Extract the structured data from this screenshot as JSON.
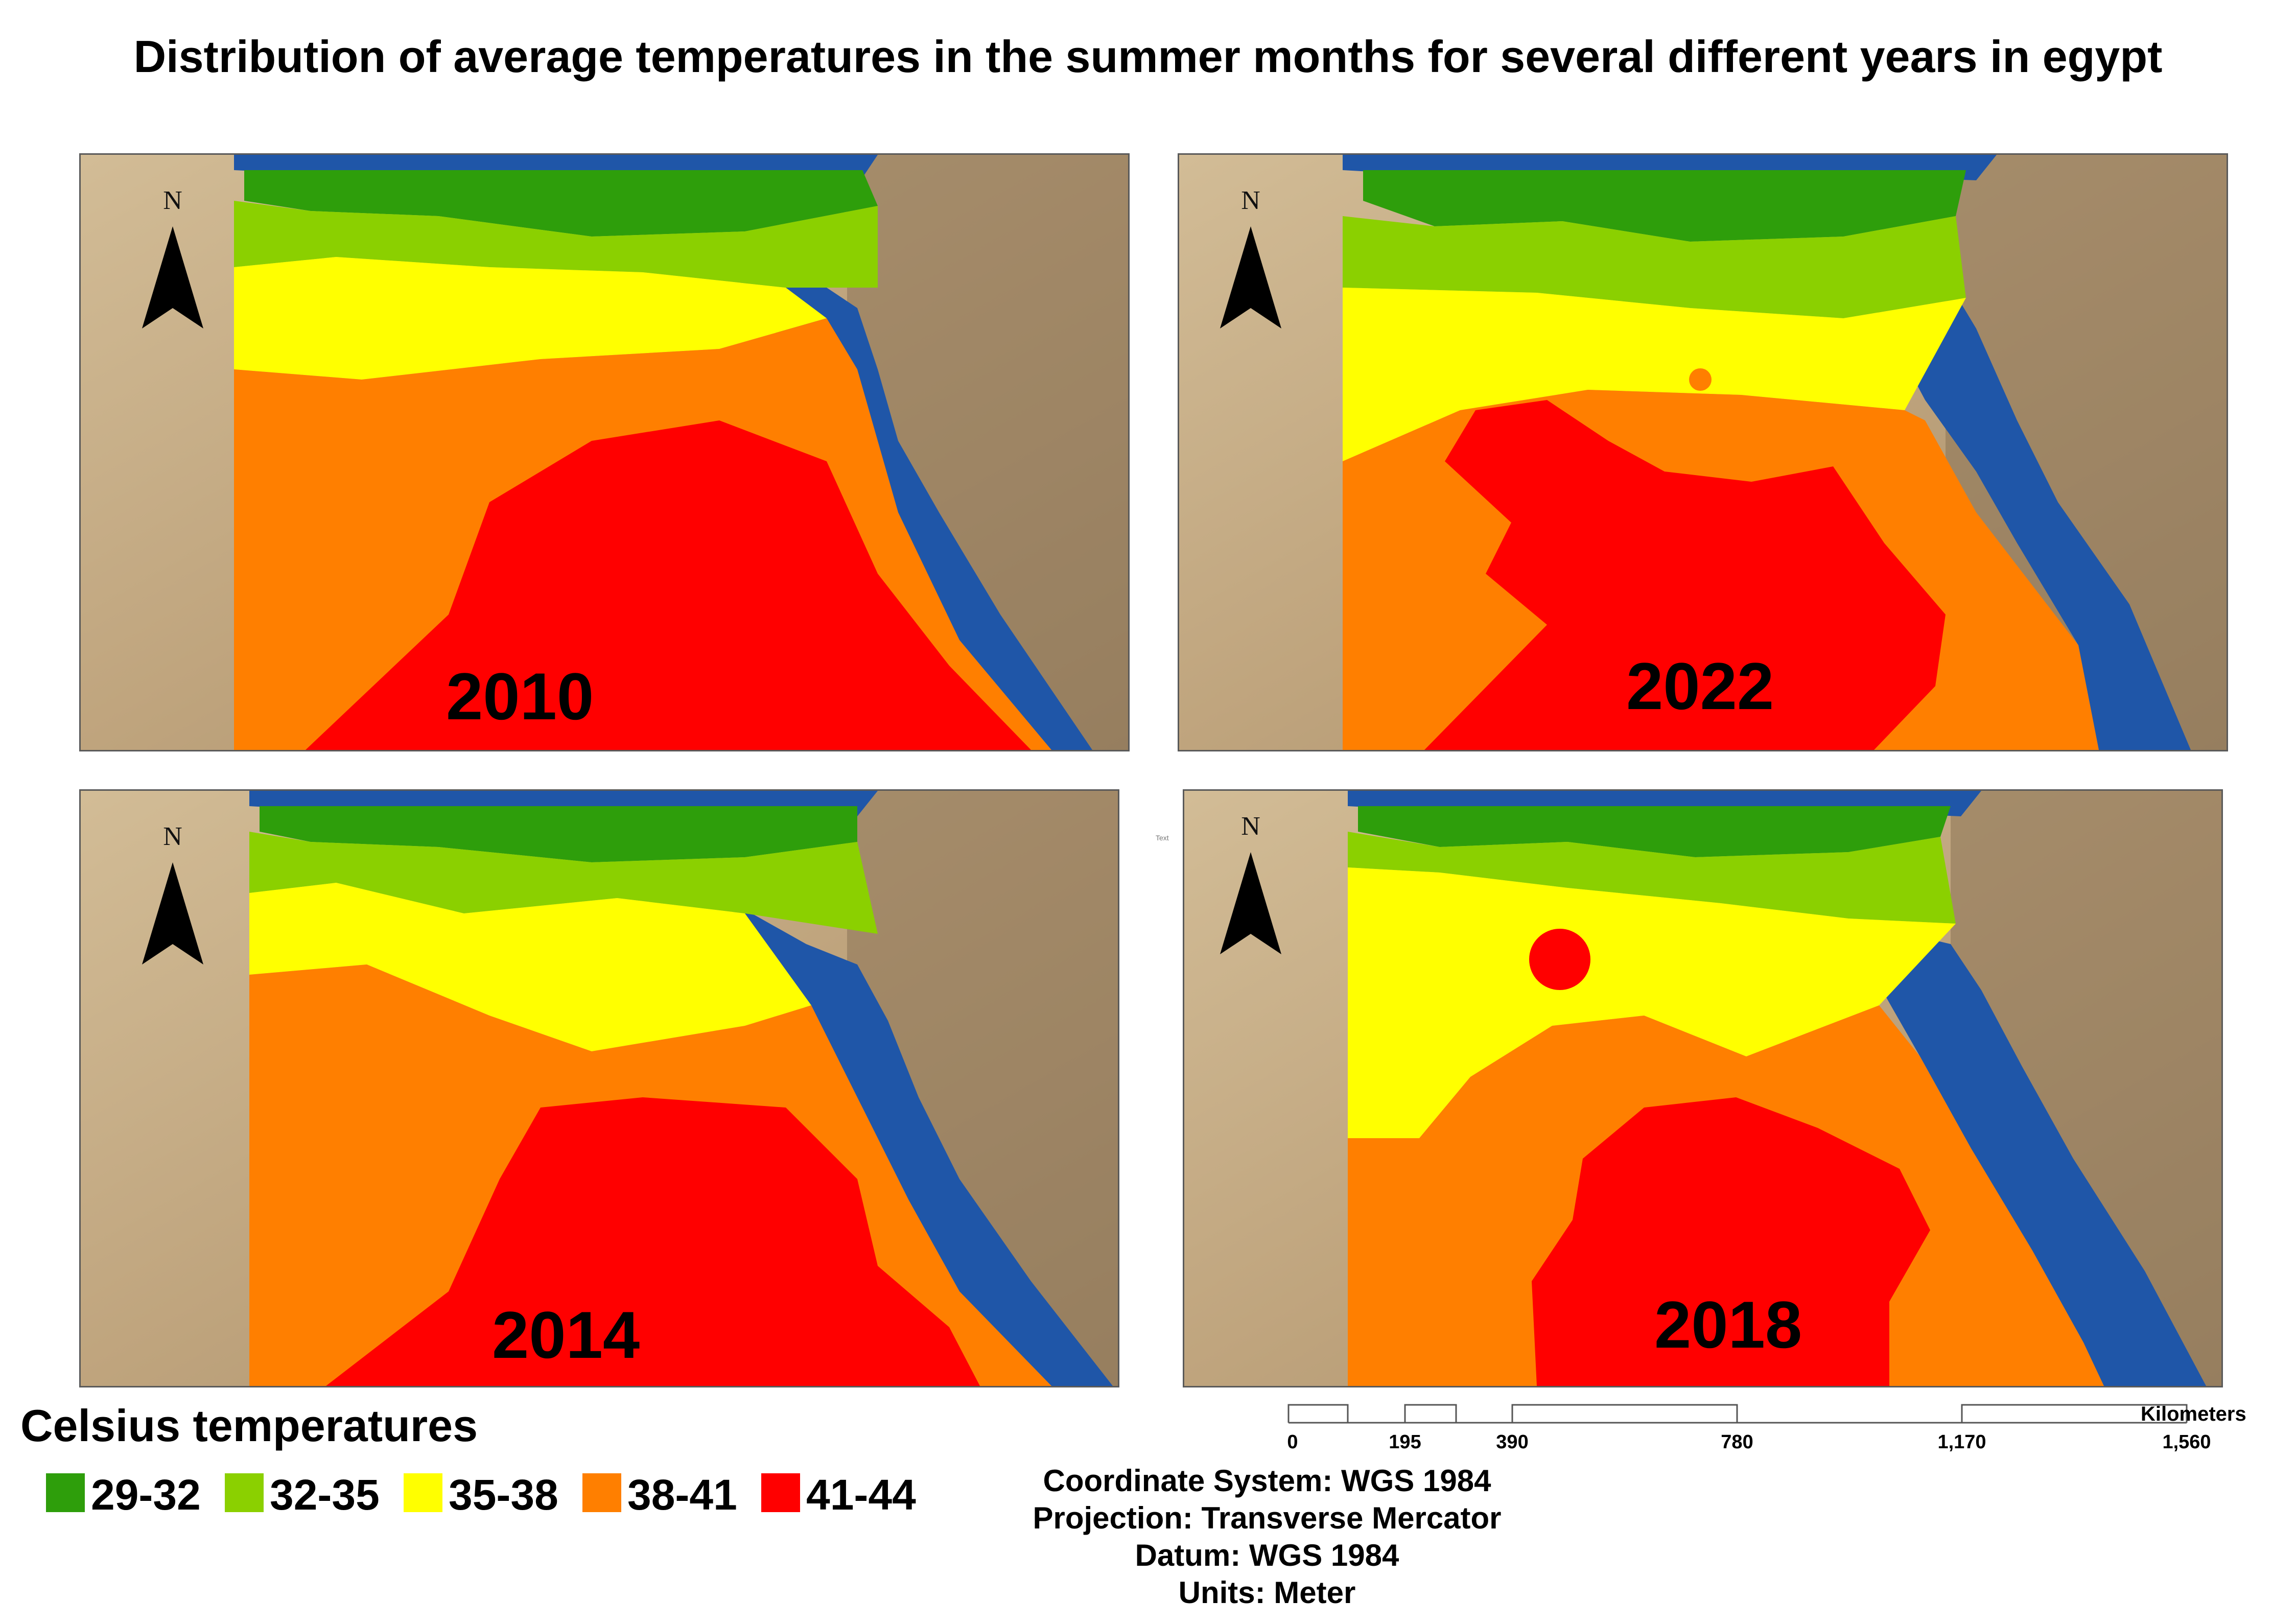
{
  "title": "Distribution of average temperatures in the summer months for several different years in egypt",
  "colors": {
    "c29_32": "#2e9e0b",
    "c32_35": "#8bd000",
    "c35_38": "#ffff00",
    "c38_41": "#ff7f00",
    "c41_44": "#ff0000",
    "sea": "#1f56a8",
    "desert": "#c8b18c"
  },
  "panels": [
    {
      "year": "2010",
      "north_label": "N"
    },
    {
      "year": "2022",
      "north_label": "N"
    },
    {
      "year": "2014",
      "north_label": "N"
    },
    {
      "year": "2018",
      "north_label": "N"
    }
  ],
  "legend": {
    "title": "Celsius temperatures",
    "items": [
      {
        "label": "29-32",
        "color": "#2e9e0b"
      },
      {
        "label": "32-35",
        "color": "#8bd000"
      },
      {
        "label": "35-38",
        "color": "#ffff00"
      },
      {
        "label": "38-41",
        "color": "#ff7f00"
      },
      {
        "label": "41-44",
        "color": "#ff0000"
      }
    ]
  },
  "scale_bar": {
    "unit": "Kilometers",
    "ticks": [
      "0",
      "195",
      "390",
      "780",
      "1,170",
      "1,560"
    ]
  },
  "map_info": {
    "coordinate_system": "Coordinate System: WGS 1984",
    "projection": "Projection: Transverse Mercator",
    "datum": "Datum: WGS 1984",
    "units": "Units: Meter"
  },
  "placeholder_text": "Text"
}
